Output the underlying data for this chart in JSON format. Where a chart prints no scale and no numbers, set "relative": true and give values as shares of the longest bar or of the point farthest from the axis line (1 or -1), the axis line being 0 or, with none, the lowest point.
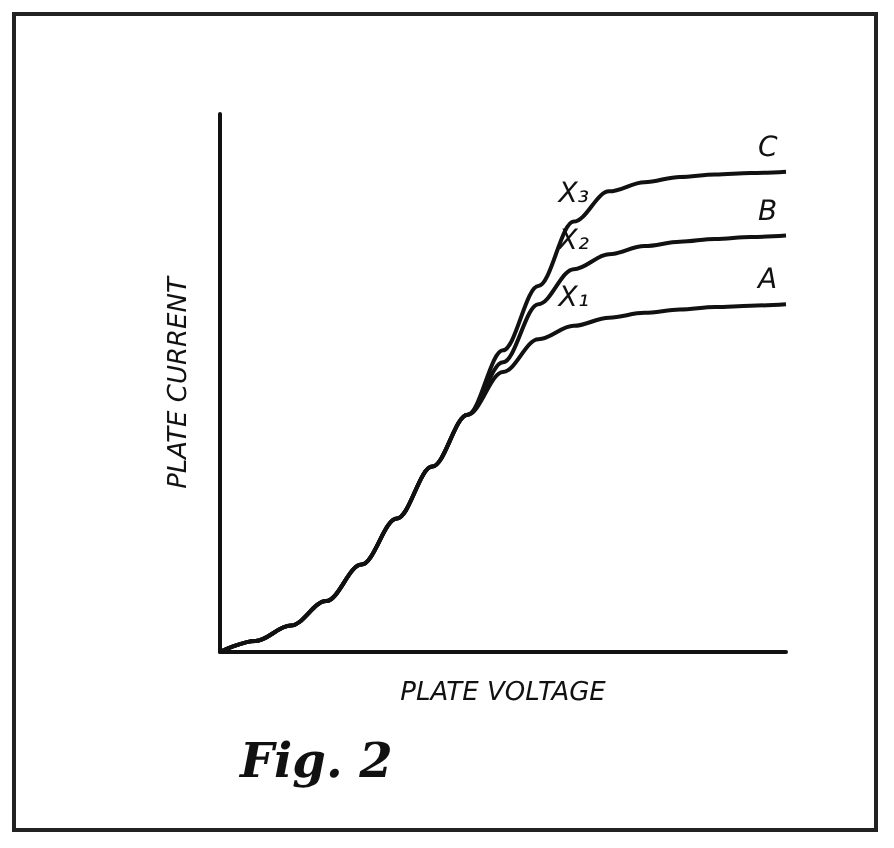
{
  "chart_data": {
    "type": "line",
    "relative": true,
    "xlabel": "PLATE VOLTAGE",
    "ylabel": "PLATE CURRENT",
    "annotations": [
      "X₁",
      "X₂",
      "X₃",
      "Fig. 2"
    ],
    "categories": [
      null,
      null,
      null,
      null,
      null,
      null,
      null,
      null,
      null,
      null,
      null,
      null,
      null,
      null,
      null,
      null,
      null
    ],
    "legend": false,
    "grid": false,
    "marker": "none",
    "line_style": "solid",
    "series": [
      {
        "name": "A",
        "color": "#111111",
        "values": [
          0,
          0.023,
          0.055,
          0.106,
          0.182,
          0.278,
          0.386,
          0.494,
          0.583,
          0.651,
          0.679,
          0.696,
          0.706,
          0.713,
          0.718,
          0.721,
          0.724
        ]
      },
      {
        "name": "B",
        "color": "#111111",
        "values": [
          0,
          0.023,
          0.055,
          0.106,
          0.182,
          0.278,
          0.386,
          0.494,
          0.603,
          0.724,
          0.797,
          0.828,
          0.845,
          0.854,
          0.86,
          0.864,
          0.867
        ]
      },
      {
        "name": "C",
        "color": "#111111",
        "values": [
          0,
          0.023,
          0.055,
          0.106,
          0.182,
          0.278,
          0.386,
          0.494,
          0.628,
          0.762,
          0.896,
          0.959,
          0.978,
          0.989,
          0.994,
          0.997,
          1
        ]
      }
    ]
  }
}
